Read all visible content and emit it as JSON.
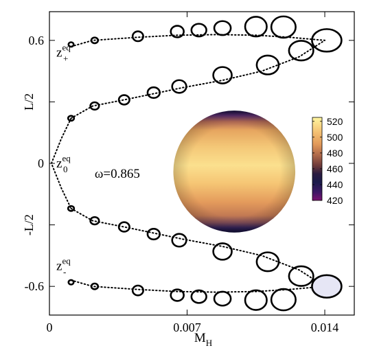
{
  "chart_data": {
    "type": "scatter",
    "title": "",
    "xlabel": {
      "main": "M",
      "sub": "H"
    },
    "ylabel": "",
    "xlim": [
      0,
      0.0155
    ],
    "ylim": [
      -0.74,
      0.74
    ],
    "grid": false,
    "x_ticks": [
      {
        "value": 0,
        "label": "0"
      },
      {
        "value": 0.007,
        "label": "0.007"
      },
      {
        "value": 0.014,
        "label": "0.014"
      }
    ],
    "y_ticks": [
      {
        "value": 0.6,
        "label": "0.6"
      },
      {
        "value": 0.3,
        "label": "L/2"
      },
      {
        "value": 0,
        "label": "0"
      },
      {
        "value": -0.3,
        "label": "-L/2"
      },
      {
        "value": -0.6,
        "label": "-0.6"
      }
    ],
    "annotations": [
      {
        "id": "z-plus",
        "main": "z",
        "sup": "eq",
        "sub": "+",
        "x": 0.00035,
        "y": 0.52
      },
      {
        "id": "z-zero",
        "main": "z",
        "sup": "eq",
        "sub": "0",
        "x": 0.00035,
        "y": -0.02
      },
      {
        "id": "z-minus",
        "main": "z",
        "sup": "eq",
        "sub": "-",
        "x": 0.00035,
        "y": -0.52
      },
      {
        "id": "omega",
        "text": "ω=0.865",
        "x": 0.0023,
        "y": -0.07
      }
    ],
    "dotted_curves": [
      {
        "name": "upper-outer",
        "x": [
          0.0011,
          0.0022,
          0.0045,
          0.0065,
          0.0085,
          0.0105,
          0.0122,
          0.014
        ],
        "y": [
          0.57,
          0.6,
          0.615,
          0.625,
          0.628,
          0.625,
          0.615,
          0.6
        ]
      },
      {
        "name": "upper-inner",
        "x": [
          0.0011,
          0.0022,
          0.0038,
          0.0053,
          0.0068,
          0.0088,
          0.0108,
          0.0127,
          0.014
        ],
        "y": [
          0.22,
          0.28,
          0.31,
          0.34,
          0.37,
          0.405,
          0.45,
          0.52,
          0.6
        ]
      },
      {
        "name": "center",
        "x": [
          0.0011,
          0.0006,
          0.0001,
          0.0006,
          0.0011
        ],
        "y": [
          0.22,
          0.12,
          0,
          -0.12,
          -0.22
        ]
      },
      {
        "name": "lower-inner",
        "x": [
          0.0011,
          0.0022,
          0.0038,
          0.0053,
          0.0068,
          0.0088,
          0.0108,
          0.0127,
          0.014
        ],
        "y": [
          -0.22,
          -0.28,
          -0.31,
          -0.34,
          -0.37,
          -0.405,
          -0.45,
          -0.52,
          -0.6
        ]
      },
      {
        "name": "lower-outer",
        "x": [
          0.0011,
          0.0022,
          0.0045,
          0.0065,
          0.0085,
          0.0105,
          0.0122,
          0.014
        ],
        "y": [
          -0.57,
          -0.6,
          -0.615,
          -0.625,
          -0.628,
          -0.625,
          -0.615,
          -0.6
        ]
      }
    ],
    "ellipses": [
      {
        "x": 0.0011,
        "y": 0.58,
        "rx": 0.00013,
        "ry": 0.011
      },
      {
        "x": 0.0023,
        "y": 0.6,
        "rx": 0.00017,
        "ry": 0.014
      },
      {
        "x": 0.0045,
        "y": 0.62,
        "rx": 0.00027,
        "ry": 0.024
      },
      {
        "x": 0.0065,
        "y": 0.643,
        "rx": 0.00033,
        "ry": 0.028
      },
      {
        "x": 0.0076,
        "y": 0.65,
        "rx": 0.00038,
        "ry": 0.031
      },
      {
        "x": 0.0088,
        "y": 0.66,
        "rx": 0.00042,
        "ry": 0.034
      },
      {
        "x": 0.0105,
        "y": 0.667,
        "rx": 0.00055,
        "ry": 0.048
      },
      {
        "x": 0.0119,
        "y": 0.665,
        "rx": 0.00062,
        "ry": 0.052
      },
      {
        "x": 0.0128,
        "y": 0.55,
        "rx": 0.00062,
        "ry": 0.048
      },
      {
        "x": 0.0141,
        "y": 0.6,
        "rx": 0.00075,
        "ry": 0.055
      },
      {
        "x": 0.0011,
        "y": 0.22,
        "rx": 0.00015,
        "ry": 0.012
      },
      {
        "x": 0.0023,
        "y": 0.28,
        "rx": 0.00022,
        "ry": 0.018
      },
      {
        "x": 0.0038,
        "y": 0.31,
        "rx": 0.00027,
        "ry": 0.023
      },
      {
        "x": 0.0053,
        "y": 0.345,
        "rx": 0.00031,
        "ry": 0.026
      },
      {
        "x": 0.0066,
        "y": 0.375,
        "rx": 0.00036,
        "ry": 0.031
      },
      {
        "x": 0.0088,
        "y": 0.43,
        "rx": 0.00047,
        "ry": 0.04
      },
      {
        "x": 0.0111,
        "y": 0.48,
        "rx": 0.00056,
        "ry": 0.046
      },
      {
        "x": 0.0011,
        "y": -0.22,
        "rx": 0.00015,
        "ry": 0.012
      },
      {
        "x": 0.0023,
        "y": -0.28,
        "rx": 0.00022,
        "ry": 0.018
      },
      {
        "x": 0.0038,
        "y": -0.31,
        "rx": 0.00027,
        "ry": 0.023
      },
      {
        "x": 0.0053,
        "y": -0.345,
        "rx": 0.00031,
        "ry": 0.026
      },
      {
        "x": 0.0066,
        "y": -0.375,
        "rx": 0.00036,
        "ry": 0.031
      },
      {
        "x": 0.0088,
        "y": -0.43,
        "rx": 0.00047,
        "ry": 0.04
      },
      {
        "x": 0.0111,
        "y": -0.48,
        "rx": 0.00056,
        "ry": 0.046
      },
      {
        "x": 0.0011,
        "y": -0.58,
        "rx": 0.00013,
        "ry": 0.011
      },
      {
        "x": 0.0023,
        "y": -0.6,
        "rx": 0.00017,
        "ry": 0.014
      },
      {
        "x": 0.0045,
        "y": -0.62,
        "rx": 0.00027,
        "ry": 0.024
      },
      {
        "x": 0.0065,
        "y": -0.643,
        "rx": 0.00033,
        "ry": 0.028
      },
      {
        "x": 0.0076,
        "y": -0.65,
        "rx": 0.00038,
        "ry": 0.031
      },
      {
        "x": 0.0088,
        "y": -0.66,
        "rx": 0.00042,
        "ry": 0.034
      },
      {
        "x": 0.0105,
        "y": -0.667,
        "rx": 0.00055,
        "ry": 0.048
      },
      {
        "x": 0.0119,
        "y": -0.665,
        "rx": 0.00062,
        "ry": 0.052
      },
      {
        "x": 0.0128,
        "y": -0.55,
        "rx": 0.00062,
        "ry": 0.048
      },
      {
        "x": 0.0141,
        "y": -0.6,
        "rx": 0.00075,
        "ry": 0.055,
        "fill": "#e6e6f5"
      }
    ],
    "inset_sphere": {
      "center": {
        "x": 0.0094,
        "y": -0.04
      },
      "radius_x": 0.0031,
      "colormap": "inferno-like",
      "colorbar": {
        "min": 420,
        "max": 525,
        "ticks": [
          520,
          500,
          480,
          460,
          440,
          420
        ]
      }
    }
  }
}
